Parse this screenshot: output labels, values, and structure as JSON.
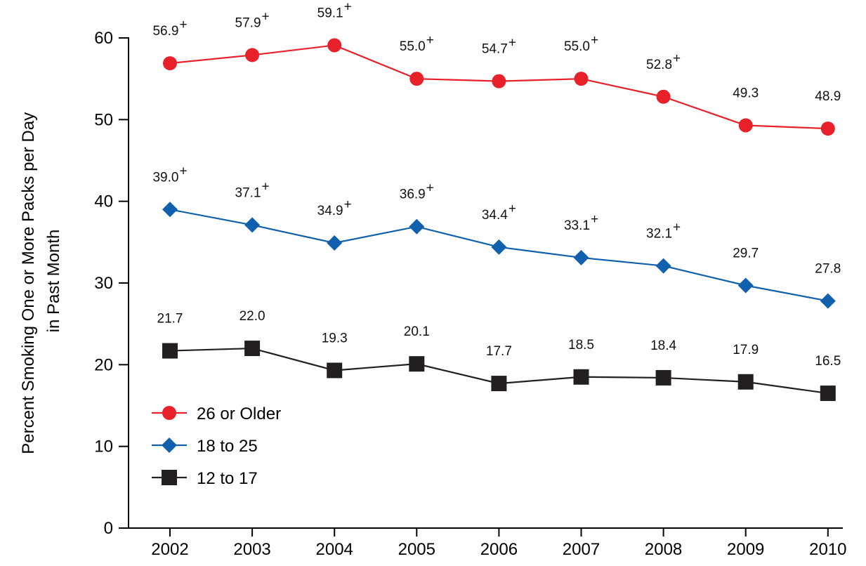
{
  "chart_data": {
    "type": "line",
    "title": "",
    "xlabel": "",
    "ylabel_lines": [
      "Percent Smoking One or More Packs per Day",
      "in Past Month"
    ],
    "categories": [
      "2002",
      "2003",
      "2004",
      "2005",
      "2006",
      "2007",
      "2008",
      "2009",
      "2010"
    ],
    "ylim": [
      0,
      60
    ],
    "yticks": [
      0,
      10,
      20,
      30,
      40,
      50,
      60
    ],
    "grid": false,
    "legend_position": "bottom-left",
    "series": [
      {
        "name": "26 or Older",
        "color": "#e8202a",
        "marker": "circle",
        "values": [
          56.9,
          57.9,
          59.1,
          55.0,
          54.7,
          55.0,
          52.8,
          49.3,
          48.9
        ],
        "labels": [
          "56.9",
          "57.9",
          "59.1",
          "55.0",
          "54.7",
          "55.0",
          "52.8",
          "49.3",
          "48.9"
        ],
        "significant": [
          true,
          true,
          true,
          true,
          true,
          true,
          true,
          false,
          false
        ]
      },
      {
        "name": "18 to 25",
        "color": "#1060ad",
        "marker": "diamond",
        "values": [
          39.0,
          37.1,
          34.9,
          36.9,
          34.4,
          33.1,
          32.1,
          29.7,
          27.8
        ],
        "labels": [
          "39.0",
          "37.1",
          "34.9",
          "36.9",
          "34.4",
          "33.1",
          "32.1",
          "29.7",
          "27.8"
        ],
        "significant": [
          true,
          true,
          true,
          true,
          true,
          true,
          true,
          false,
          false
        ]
      },
      {
        "name": "12 to 17",
        "color": "#231f20",
        "marker": "square",
        "values": [
          21.7,
          22.0,
          19.3,
          20.1,
          17.7,
          18.5,
          18.4,
          17.9,
          16.5
        ],
        "labels": [
          "21.7",
          "22.0",
          "19.3",
          "20.1",
          "17.7",
          "18.5",
          "18.4",
          "17.9",
          "16.5"
        ],
        "significant": [
          false,
          false,
          false,
          false,
          false,
          false,
          false,
          false,
          false
        ]
      }
    ],
    "significance_marker": "+"
  }
}
